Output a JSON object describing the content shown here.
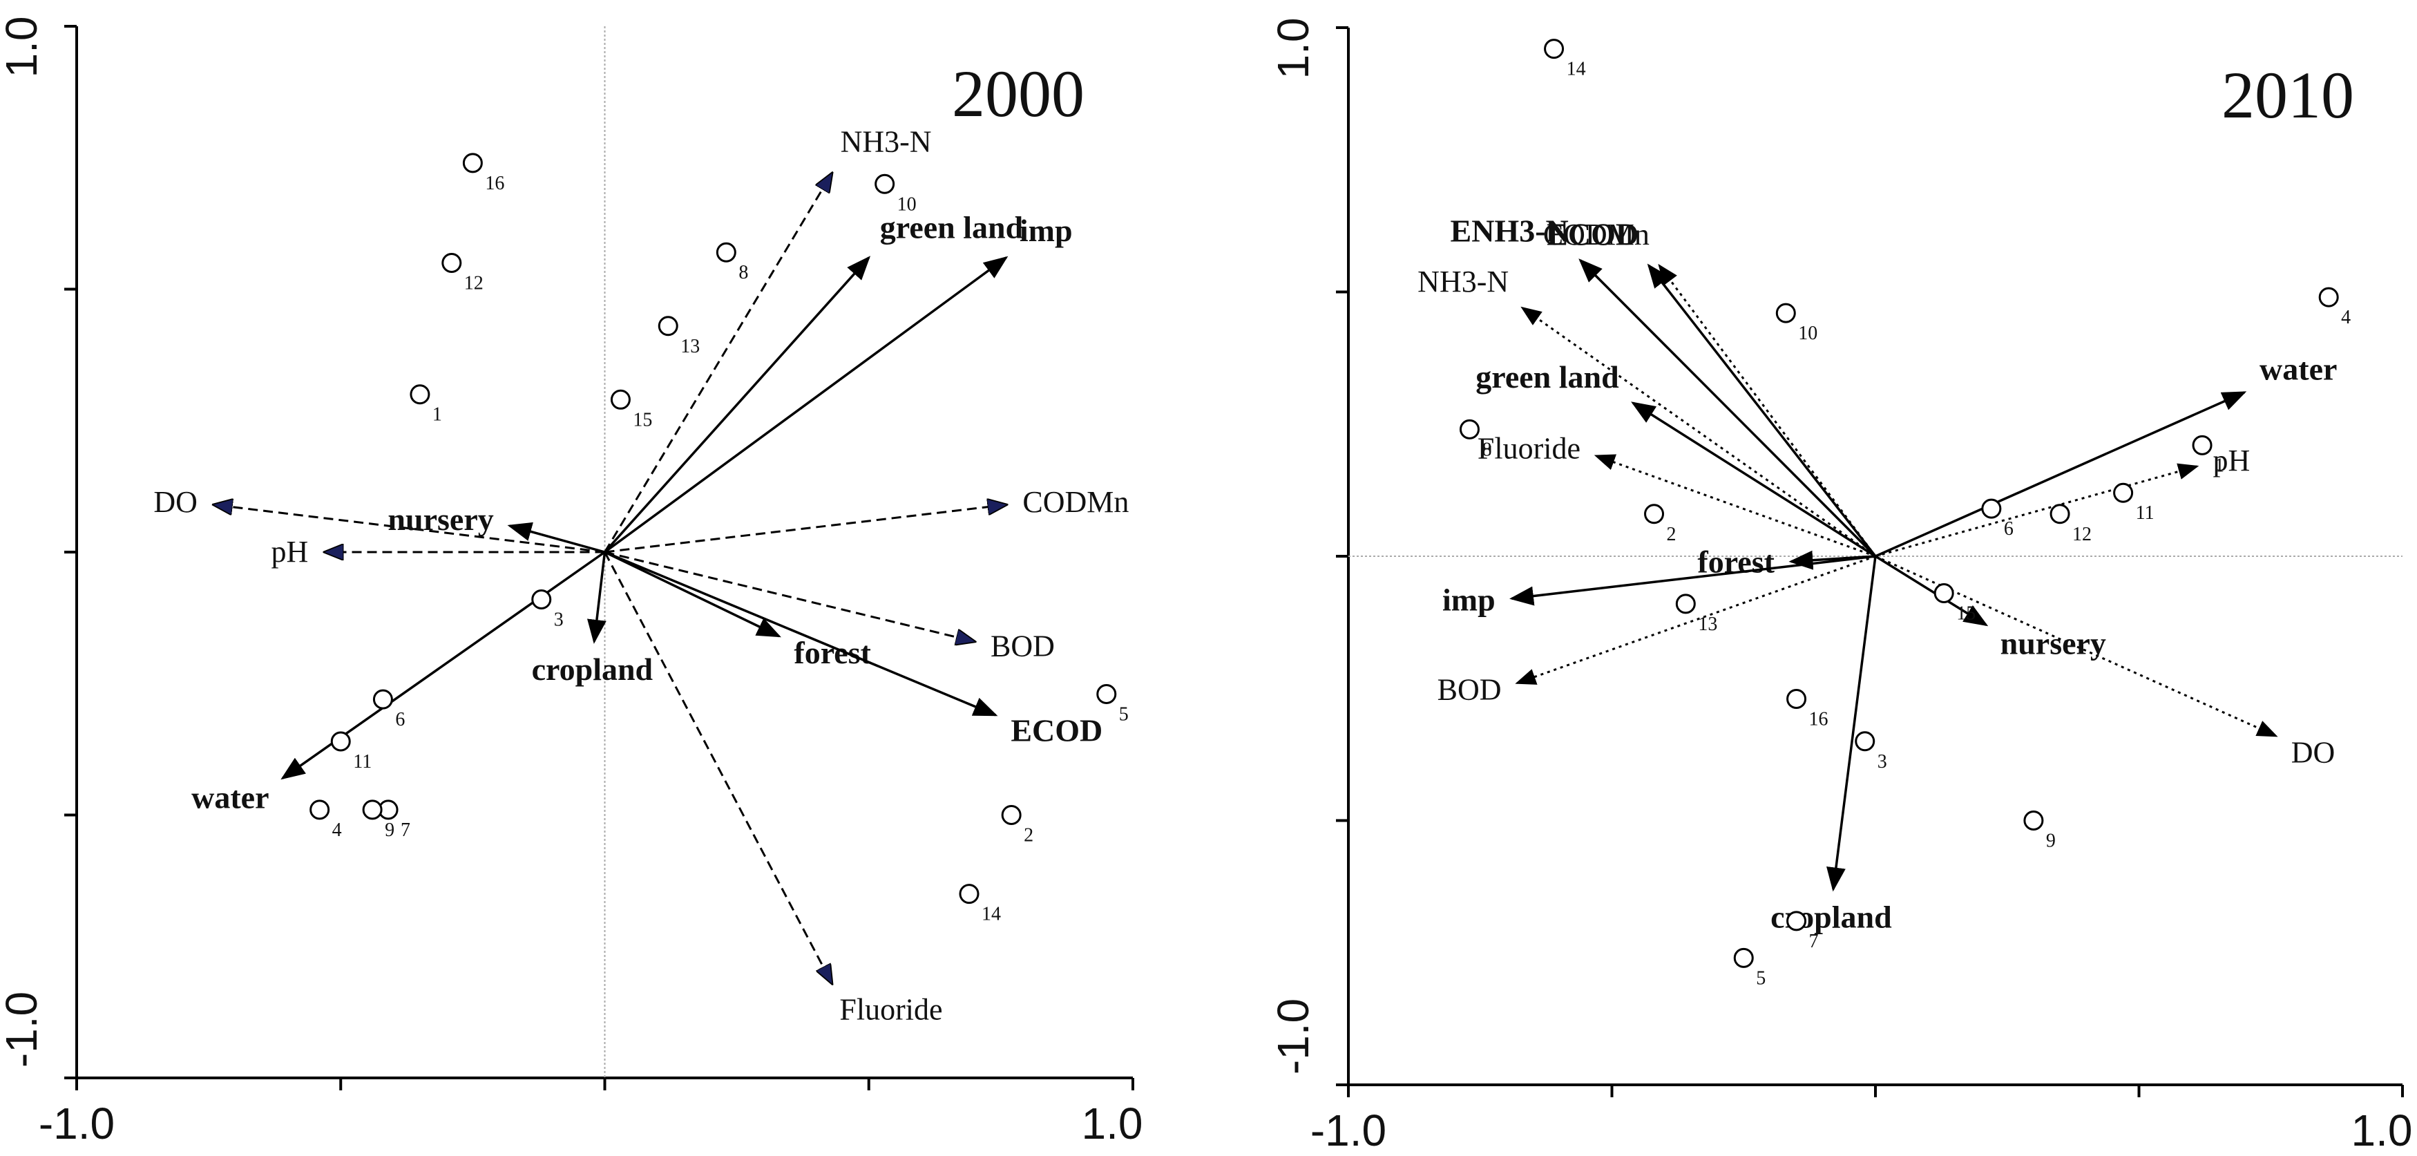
{
  "chart_data": [
    {
      "type": "scatter",
      "subtype": "RDA biplot",
      "title": "2000",
      "xlim": [
        -1.0,
        1.0
      ],
      "ylim": [
        -1.0,
        1.0
      ],
      "x_tick_labels": [
        "-1.0",
        "1.0"
      ],
      "y_tick_labels": [
        "1.0",
        "-1.0"
      ],
      "zero_gridlines": "vertical",
      "land_use_vectors": [
        {
          "name": "green land",
          "x": 0.5,
          "y": 0.56
        },
        {
          "name": "imp",
          "x": 0.76,
          "y": 0.56
        },
        {
          "name": "nursery",
          "x": -0.18,
          "y": 0.05
        },
        {
          "name": "cropland",
          "x": -0.02,
          "y": -0.17
        },
        {
          "name": "forest",
          "x": 0.33,
          "y": -0.16
        },
        {
          "name": "ECOD",
          "x": 0.74,
          "y": -0.31
        },
        {
          "name": "water",
          "x": -0.61,
          "y": -0.43
        }
      ],
      "water_quality_vectors": [
        {
          "name": "NH3-N",
          "x": 0.43,
          "y": 0.72
        },
        {
          "name": "CODMn",
          "x": 0.76,
          "y": 0.09
        },
        {
          "name": "DO",
          "x": -0.74,
          "y": 0.09
        },
        {
          "name": "pH",
          "x": -0.53,
          "y": 0.0
        },
        {
          "name": "BOD",
          "x": 0.7,
          "y": -0.17
        },
        {
          "name": "Fluoride",
          "x": 0.43,
          "y": -0.82
        }
      ],
      "sites": [
        {
          "label": "1",
          "x": -0.35,
          "y": 0.3
        },
        {
          "label": "2",
          "x": 0.77,
          "y": -0.5
        },
        {
          "label": "3",
          "x": -0.12,
          "y": -0.09
        },
        {
          "label": "4",
          "x": -0.54,
          "y": -0.49
        },
        {
          "label": "5",
          "x": 0.95,
          "y": -0.27
        },
        {
          "label": "6",
          "x": -0.42,
          "y": -0.28
        },
        {
          "label": "7",
          "x": -0.41,
          "y": -0.49
        },
        {
          "label": "9",
          "x": -0.44,
          "y": -0.49
        },
        {
          "label": "8",
          "x": 0.23,
          "y": 0.57
        },
        {
          "label": "10",
          "x": 0.53,
          "y": 0.7
        },
        {
          "label": "11",
          "x": -0.5,
          "y": -0.36
        },
        {
          "label": "12",
          "x": -0.29,
          "y": 0.55
        },
        {
          "label": "13",
          "x": 0.12,
          "y": 0.43
        },
        {
          "label": "14",
          "x": 0.69,
          "y": -0.65
        },
        {
          "label": "15",
          "x": 0.03,
          "y": 0.29
        },
        {
          "label": "16",
          "x": -0.25,
          "y": 0.74
        }
      ]
    },
    {
      "type": "scatter",
      "subtype": "RDA biplot",
      "title": "2010",
      "xlim": [
        -1.0,
        1.0
      ],
      "ylim": [
        -1.0,
        1.0
      ],
      "x_tick_labels": [
        "-1.0",
        "1.0"
      ],
      "y_tick_labels": [
        "1.0",
        "-1.0"
      ],
      "zero_gridlines": "horizontal",
      "land_use_vectors": [
        {
          "name": "ENH3-N",
          "x": -0.56,
          "y": 0.56
        },
        {
          "name": "ECOD",
          "x": -0.43,
          "y": 0.55
        },
        {
          "name": "green land",
          "x": -0.46,
          "y": 0.29
        },
        {
          "name": "water",
          "x": 0.7,
          "y": 0.31
        },
        {
          "name": "forest",
          "x": -0.16,
          "y": -0.01
        },
        {
          "name": "imp",
          "x": -0.69,
          "y": -0.08
        },
        {
          "name": "nursery",
          "x": 0.21,
          "y": -0.13
        },
        {
          "name": "cropland",
          "x": -0.08,
          "y": -0.63
        }
      ],
      "water_quality_vectors": [
        {
          "name": "CODMn",
          "x": -0.41,
          "y": 0.55
        },
        {
          "name": "NH3-N",
          "x": -0.67,
          "y": 0.47
        },
        {
          "name": "Fluoride",
          "x": -0.53,
          "y": 0.19
        },
        {
          "name": "pH",
          "x": 0.61,
          "y": 0.17
        },
        {
          "name": "BOD",
          "x": -0.68,
          "y": -0.24
        },
        {
          "name": "DO",
          "x": 0.76,
          "y": -0.34
        }
      ],
      "sites": [
        {
          "label": "1",
          "x": 0.62,
          "y": 0.21
        },
        {
          "label": "2",
          "x": -0.42,
          "y": 0.08
        },
        {
          "label": "3",
          "x": -0.02,
          "y": -0.35
        },
        {
          "label": "4",
          "x": 0.86,
          "y": 0.49
        },
        {
          "label": "5",
          "x": -0.25,
          "y": -0.76
        },
        {
          "label": "6",
          "x": 0.22,
          "y": 0.09
        },
        {
          "label": "7",
          "x": -0.15,
          "y": -0.69
        },
        {
          "label": "8",
          "x": -0.77,
          "y": 0.24
        },
        {
          "label": "9",
          "x": 0.3,
          "y": -0.5
        },
        {
          "label": "10",
          "x": -0.17,
          "y": 0.46
        },
        {
          "label": "11",
          "x": 0.47,
          "y": 0.12
        },
        {
          "label": "12",
          "x": 0.35,
          "y": 0.08
        },
        {
          "label": "13",
          "x": -0.36,
          "y": -0.09
        },
        {
          "label": "14",
          "x": -0.61,
          "y": 0.96
        },
        {
          "label": "15",
          "x": 0.13,
          "y": -0.07
        },
        {
          "label": "16",
          "x": -0.15,
          "y": -0.27
        }
      ]
    }
  ]
}
